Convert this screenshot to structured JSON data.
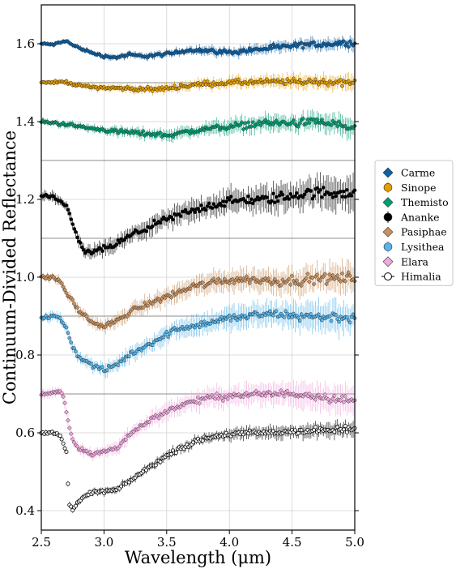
{
  "chart_data": {
    "type": "scatter",
    "xlabel": "Wavelength (μm)",
    "ylabel": "Continuum-Divided Reflectance",
    "xlim": [
      2.5,
      5.0
    ],
    "ylim": [
      0.35,
      1.7
    ],
    "xticks": [
      "2.5",
      "3.0",
      "3.5",
      "4.0",
      "4.5",
      "5.0"
    ],
    "yticks": [
      "0.4",
      "0.6",
      "0.8",
      "1.0",
      "1.2",
      "1.4",
      "1.6"
    ],
    "grid": true,
    "offset_guides": [
      1.5,
      1.3,
      1.1,
      0.9,
      0.7
    ],
    "legend_position": "outside-right",
    "series": [
      {
        "name": "Carme",
        "marker": "diamond",
        "color": "#0a62a8",
        "noise": 0.007,
        "err": 0.01,
        "x": [
          2.5,
          2.6,
          2.7,
          2.75,
          2.8,
          2.9,
          3.0,
          3.1,
          3.2,
          3.3,
          3.5,
          3.7,
          4.0,
          4.3,
          4.6,
          5.0
        ],
        "y": [
          1.6,
          1.598,
          1.608,
          1.596,
          1.59,
          1.577,
          1.568,
          1.565,
          1.572,
          1.568,
          1.573,
          1.585,
          1.578,
          1.588,
          1.597,
          1.603
        ]
      },
      {
        "name": "Sinope",
        "marker": "circle",
        "color": "#e69f00",
        "noise": 0.008,
        "err": 0.012,
        "x": [
          2.5,
          2.7,
          2.8,
          3.0,
          3.2,
          3.4,
          3.6,
          3.8,
          4.0,
          4.3,
          4.6,
          5.0
        ],
        "y": [
          1.5,
          1.502,
          1.492,
          1.487,
          1.485,
          1.482,
          1.49,
          1.497,
          1.5,
          1.502,
          1.503,
          1.5
        ]
      },
      {
        "name": "Themisto",
        "marker": "diamond",
        "color": "#009e73",
        "noise": 0.01,
        "err": 0.015,
        "x": [
          2.5,
          2.7,
          2.9,
          3.1,
          3.3,
          3.5,
          3.7,
          3.9,
          4.1,
          4.3,
          4.5,
          4.7,
          4.9,
          5.0
        ],
        "y": [
          1.4,
          1.393,
          1.382,
          1.375,
          1.37,
          1.365,
          1.375,
          1.385,
          1.39,
          1.397,
          1.395,
          1.4,
          1.39,
          1.38
        ]
      },
      {
        "name": "Ananke",
        "marker": "circle",
        "color": "#000000",
        "noise": 0.014,
        "err": 0.025,
        "x": [
          2.5,
          2.6,
          2.7,
          2.75,
          2.8,
          2.85,
          2.9,
          3.0,
          3.1,
          3.2,
          3.4,
          3.6,
          3.8,
          4.0,
          4.3,
          4.6,
          5.0
        ],
        "y": [
          1.21,
          1.203,
          1.182,
          1.14,
          1.09,
          1.063,
          1.065,
          1.073,
          1.085,
          1.105,
          1.135,
          1.16,
          1.18,
          1.195,
          1.2,
          1.215,
          1.22
        ]
      },
      {
        "name": "Pasiphae",
        "marker": "diamond",
        "color": "#c8915e",
        "noise": 0.012,
        "err": 0.022,
        "x": [
          2.5,
          2.6,
          2.65,
          2.7,
          2.8,
          2.9,
          3.0,
          3.1,
          3.2,
          3.3,
          3.5,
          3.7,
          3.9,
          4.1,
          4.4,
          4.7,
          5.0
        ],
        "y": [
          1.0,
          0.998,
          0.99,
          0.96,
          0.915,
          0.885,
          0.873,
          0.887,
          0.91,
          0.925,
          0.95,
          0.975,
          0.99,
          0.995,
          0.99,
          0.995,
          1.0
        ]
      },
      {
        "name": "Lysithea",
        "marker": "circle",
        "color": "#56b4e9",
        "noise": 0.012,
        "err": 0.024,
        "x": [
          2.5,
          2.6,
          2.65,
          2.7,
          2.75,
          2.8,
          2.9,
          3.0,
          3.1,
          3.2,
          3.4,
          3.6,
          3.8,
          4.0,
          4.3,
          4.6,
          5.0
        ],
        "y": [
          0.895,
          0.9,
          0.893,
          0.87,
          0.82,
          0.795,
          0.775,
          0.76,
          0.775,
          0.8,
          0.835,
          0.87,
          0.88,
          0.895,
          0.905,
          0.9,
          0.895
        ]
      },
      {
        "name": "Elara",
        "marker": "diamond",
        "color": "#f2a7de",
        "noise": 0.01,
        "err": 0.022,
        "x": [
          2.5,
          2.6,
          2.65,
          2.68,
          2.72,
          2.75,
          2.8,
          2.9,
          3.0,
          3.1,
          3.2,
          3.4,
          3.6,
          3.8,
          4.0,
          4.3,
          4.6,
          5.0
        ],
        "y": [
          0.7,
          0.703,
          0.705,
          0.69,
          0.62,
          0.58,
          0.56,
          0.545,
          0.552,
          0.56,
          0.595,
          0.64,
          0.67,
          0.688,
          0.695,
          0.7,
          0.7,
          0.68
        ]
      },
      {
        "name": "Himalia",
        "marker": "open-circle",
        "color": "#ffffff",
        "noise": 0.008,
        "err": 0.012,
        "x": [
          2.5,
          2.6,
          2.65,
          2.7,
          2.72,
          2.75,
          2.8,
          2.9,
          3.0,
          3.1,
          3.2,
          3.4,
          3.6,
          3.8,
          4.0,
          4.3,
          4.6,
          5.0
        ],
        "y": [
          0.6,
          0.6,
          0.595,
          0.55,
          0.42,
          0.4,
          0.425,
          0.447,
          0.45,
          0.453,
          0.475,
          0.52,
          0.56,
          0.585,
          0.597,
          0.6,
          0.605,
          0.608
        ]
      }
    ]
  }
}
